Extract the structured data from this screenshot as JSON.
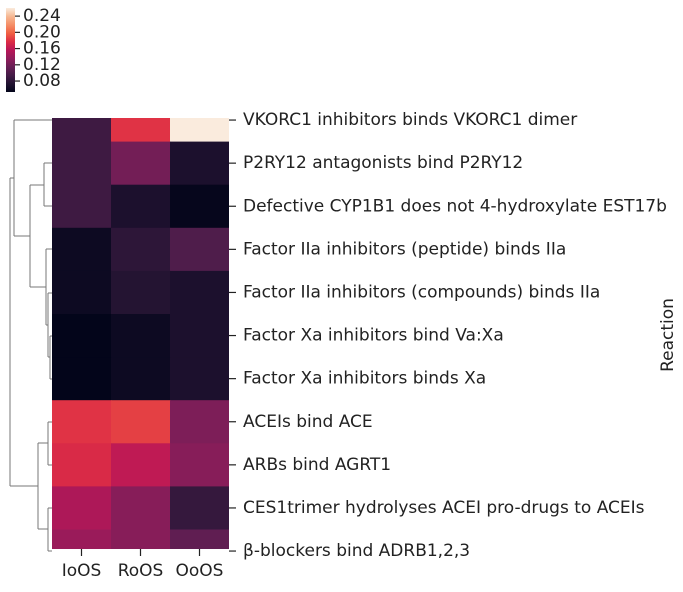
{
  "chart_data": {
    "type": "heatmap",
    "ylabel": "Reaction",
    "x_categories": [
      "IoOS",
      "RoOS",
      "OoOS"
    ],
    "y_categories": [
      "VKORC1 inhibitors binds VKORC1 dimer",
      "P2RY12 antagonists bind P2RY12",
      "Defective CYP1B1 does not 4-hydroxylate EST17b",
      "Factor IIa inhibitors (peptide) binds IIa",
      "Factor IIa inhibitors (compounds) binds IIa",
      "Factor Xa inhibitors bind Va:Xa",
      "Factor Xa inhibitors binds Xa",
      "ACEIs bind ACE",
      "ARBs bind AGRT1",
      "CES1trimer hydrolyses ACEI pro-drugs to ACEIs",
      "β-blockers bind ADRB1,2,3"
    ],
    "values": [
      [
        0.09,
        0.18,
        0.26
      ],
      [
        0.09,
        0.12,
        0.07
      ],
      [
        0.09,
        0.07,
        0.055
      ],
      [
        0.06,
        0.08,
        0.1
      ],
      [
        0.06,
        0.075,
        0.07
      ],
      [
        0.053,
        0.06,
        0.07
      ],
      [
        0.053,
        0.06,
        0.07
      ],
      [
        0.18,
        0.185,
        0.125
      ],
      [
        0.175,
        0.16,
        0.13
      ],
      [
        0.15,
        0.13,
        0.085
      ],
      [
        0.14,
        0.13,
        0.11
      ]
    ],
    "colormap": "rocket",
    "clim": [
      0.053,
      0.26
    ],
    "cticks": [
      0.08,
      0.12,
      0.16,
      {
        "value": 0.2,
        "label": "0.20"
      },
      0.24
    ]
  }
}
